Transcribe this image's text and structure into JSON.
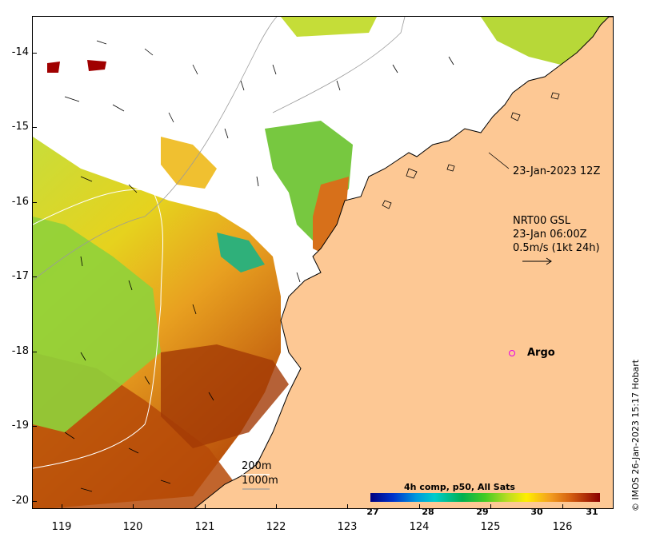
{
  "map": {
    "y_ticks": [
      "-14",
      "-15",
      "-16",
      "-17",
      "-18",
      "-19",
      "-20"
    ],
    "x_ticks": [
      "119",
      "120",
      "121",
      "122",
      "123",
      "124",
      "125",
      "126"
    ],
    "lon_range": [
      118.6,
      126.7
    ],
    "lat_range": [
      -20.1,
      -13.5
    ],
    "colors": {
      "land": "#fdc894",
      "coast": "#000000",
      "no_data": "#ffffff",
      "argo": "#e600e6"
    }
  },
  "annotations": {
    "track_time": "23-Jan-2023 12Z",
    "current_source": "NRT00 GSL",
    "current_time": "23-Jan 06:00Z",
    "current_scale": "0.5m/s (1kt 24h)"
  },
  "argo": {
    "label": "Argo"
  },
  "colorbar": {
    "title": "4h comp, p50, All Sats",
    "ticks": [
      "27",
      "28",
      "29",
      "30",
      "31"
    ],
    "range": [
      27,
      31
    ]
  },
  "isobaths": {
    "shallow": "200m",
    "deep": "1000m"
  },
  "credit": "© IMOS 26-Jan-2023 15:17 Hobart"
}
